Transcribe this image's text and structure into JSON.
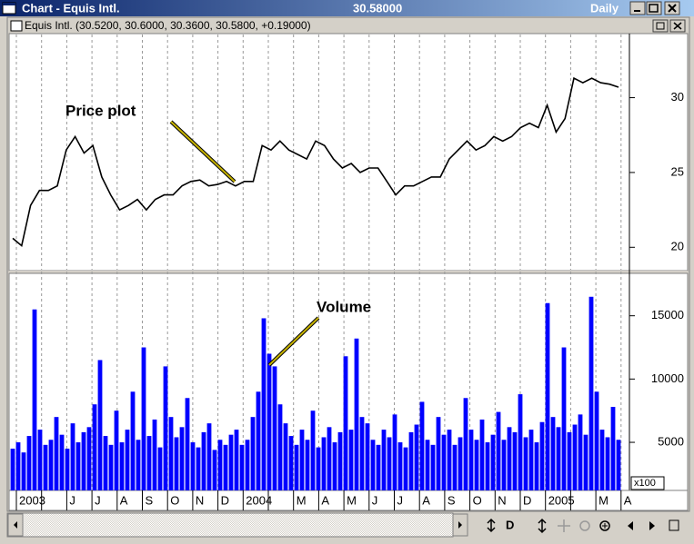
{
  "window": {
    "title": "Chart - Equis Intl.",
    "price": "30.58000",
    "period": "Daily"
  },
  "toolbar": {
    "period_button": "D"
  },
  "time_axis": {
    "labels": [
      "2003",
      null,
      "J",
      "J",
      "A",
      "S",
      "O",
      "N",
      "D",
      "2004",
      null,
      "M",
      "A",
      "M",
      "J",
      "J",
      "A",
      "S",
      "O",
      "N",
      "D",
      "2005",
      null,
      "M",
      "A"
    ]
  },
  "chart_data": [
    {
      "type": "line",
      "title": "Equis Intl. (30.5200, 30.6000, 30.3600, 30.5800, +0.19000)",
      "annotation": "Price plot",
      "color": "#000000",
      "values": [
        20.6,
        20.1,
        22.8,
        23.8,
        23.8,
        24.1,
        26.5,
        27.4,
        26.3,
        26.8,
        24.7,
        23.5,
        22.5,
        22.8,
        23.2,
        22.5,
        23.2,
        23.5,
        23.5,
        24.1,
        24.4,
        24.5,
        24.1,
        24.2,
        24.4,
        24.1,
        24.4,
        24.4,
        26.8,
        26.5,
        27.1,
        26.5,
        26.2,
        25.9,
        27.1,
        26.8,
        25.9,
        25.3,
        25.6,
        25.0,
        25.3,
        25.3,
        24.4,
        23.5,
        24.1,
        24.1,
        24.4,
        24.7,
        24.7,
        25.9,
        26.5,
        27.1,
        26.5,
        26.8,
        27.4,
        27.1,
        27.4,
        28.0,
        28.3,
        28.0,
        29.5,
        27.7,
        28.6,
        31.3,
        31.0,
        31.3,
        31.0,
        30.9,
        30.7
      ],
      "ylim": [
        18.5,
        34.1
      ],
      "yticks": [
        20,
        25,
        30
      ],
      "grid": "vertical-dotted"
    },
    {
      "type": "bar",
      "annotation": "Volume",
      "axis_label": "x100",
      "color": "#0000ff",
      "values": [
        4500,
        5000,
        4200,
        5500,
        15500,
        6000,
        4800,
        5200,
        7000,
        5600,
        4500,
        6500,
        5000,
        5800,
        6200,
        8000,
        11500,
        5500,
        4800,
        7500,
        5000,
        6000,
        9000,
        5200,
        12500,
        5500,
        6800,
        4600,
        11000,
        7000,
        5400,
        6200,
        8500,
        5000,
        4600,
        5800,
        6500,
        4400,
        5200,
        4800,
        5600,
        6000,
        4800,
        5200,
        7000,
        9000,
        14800,
        12000,
        11000,
        8000,
        6500,
        5500,
        4800,
        6000,
        5200,
        7500,
        4600,
        5400,
        6200,
        5000,
        5800,
        11800,
        6000,
        13200,
        7000,
        6500,
        5200,
        4800,
        6000,
        5400,
        7200,
        5000,
        4600,
        5800,
        6400,
        8200,
        5200,
        4800,
        7000,
        5600,
        6000,
        4800,
        5400,
        8500,
        6000,
        5200,
        6800,
        5000,
        5600,
        7400,
        5200,
        6200,
        5800,
        8800,
        5400,
        6000,
        5000,
        6600,
        16000,
        7000,
        6200,
        12500,
        5800,
        6400,
        7200,
        5600,
        16500,
        9000,
        6000,
        5400,
        7800,
        5200
      ],
      "ylim": [
        1200,
        18350
      ],
      "yticks": [
        5000,
        10000,
        15000
      ],
      "grid": "vertical-dotted"
    }
  ]
}
